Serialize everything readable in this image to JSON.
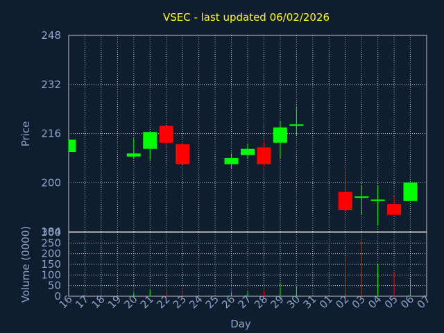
{
  "title": "VSEC - last updated 06/02/2026",
  "colors": {
    "background": "#0f1e2f",
    "up": "#00ff00",
    "down": "#ff0000",
    "title": "#ffff00",
    "axis_text": "#8fa3c7",
    "grid": "#c0c0c0"
  },
  "chart_data": [
    {
      "type": "candlestick",
      "ylabel": "Price",
      "ylim": [
        184,
        248
      ],
      "yticks": [
        184,
        200,
        216,
        232,
        248
      ],
      "grid": true,
      "categories": [
        "16",
        "17",
        "18",
        "19",
        "20",
        "21",
        "22",
        "23",
        "24",
        "25",
        "26",
        "27",
        "28",
        "29",
        "30",
        "31",
        "01",
        "02",
        "03",
        "04",
        "05",
        "06",
        "07"
      ],
      "candles": [
        {
          "day": "16",
          "open": 210,
          "high": 214,
          "low": 210,
          "close": 214
        },
        {
          "day": "20",
          "open": 208.5,
          "high": 214.5,
          "low": 208,
          "close": 209.5
        },
        {
          "day": "21",
          "open": 211,
          "high": 216.5,
          "low": 207.5,
          "close": 216.5
        },
        {
          "day": "22",
          "open": 218.5,
          "high": 218.5,
          "low": 211,
          "close": 213
        },
        {
          "day": "23",
          "open": 212.5,
          "high": 212.5,
          "low": 206,
          "close": 206
        },
        {
          "day": "26",
          "open": 206,
          "high": 209.5,
          "low": 204.5,
          "close": 208
        },
        {
          "day": "27",
          "open": 209,
          "high": 212.5,
          "low": 208,
          "close": 211
        },
        {
          "day": "28",
          "open": 211.5,
          "high": 213.5,
          "low": 205,
          "close": 206
        },
        {
          "day": "29",
          "open": 213,
          "high": 220,
          "low": 208,
          "close": 218
        },
        {
          "day": "30",
          "open": 218.5,
          "high": 225,
          "low": 215.5,
          "close": 219
        },
        {
          "day": "02",
          "open": 197,
          "high": 203.5,
          "low": 190.5,
          "close": 191
        },
        {
          "day": "03",
          "open": 195.5,
          "high": 199,
          "low": 189.5,
          "close": 195.5
        },
        {
          "day": "04",
          "open": 194,
          "high": 199,
          "low": 186,
          "close": 194.5
        },
        {
          "day": "05",
          "open": 193,
          "high": 195.5,
          "low": 189.5,
          "close": 189.5
        },
        {
          "day": "06",
          "open": 194,
          "high": 200,
          "low": 194,
          "close": 200
        }
      ]
    },
    {
      "type": "bar",
      "ylabel": "Volume (0000)",
      "xlabel": "Day",
      "ylim": [
        0,
        300
      ],
      "yticks": [
        0,
        50,
        100,
        150,
        200,
        250,
        300
      ],
      "grid": true,
      "categories": [
        "16",
        "17",
        "18",
        "19",
        "20",
        "21",
        "22",
        "23",
        "24",
        "25",
        "26",
        "27",
        "28",
        "29",
        "30",
        "31",
        "01",
        "02",
        "03",
        "04",
        "05",
        "06",
        "07"
      ],
      "values": [
        {
          "day": "20",
          "value": 18,
          "direction": "up"
        },
        {
          "day": "21",
          "value": 30,
          "direction": "up"
        },
        {
          "day": "22",
          "value": 28,
          "direction": "down"
        },
        {
          "day": "23",
          "value": 25,
          "direction": "down"
        },
        {
          "day": "26",
          "value": 20,
          "direction": "up"
        },
        {
          "day": "27",
          "value": 22,
          "direction": "up"
        },
        {
          "day": "28",
          "value": 27,
          "direction": "down"
        },
        {
          "day": "29",
          "value": 60,
          "direction": "up"
        },
        {
          "day": "30",
          "value": 48,
          "direction": "up"
        },
        {
          "day": "02",
          "value": 178,
          "direction": "down"
        },
        {
          "day": "03",
          "value": 265,
          "direction": "down"
        },
        {
          "day": "04",
          "value": 150,
          "direction": "up"
        },
        {
          "day": "05",
          "value": 115,
          "direction": "down"
        },
        {
          "day": "06",
          "value": 80,
          "direction": "up"
        }
      ]
    }
  ]
}
